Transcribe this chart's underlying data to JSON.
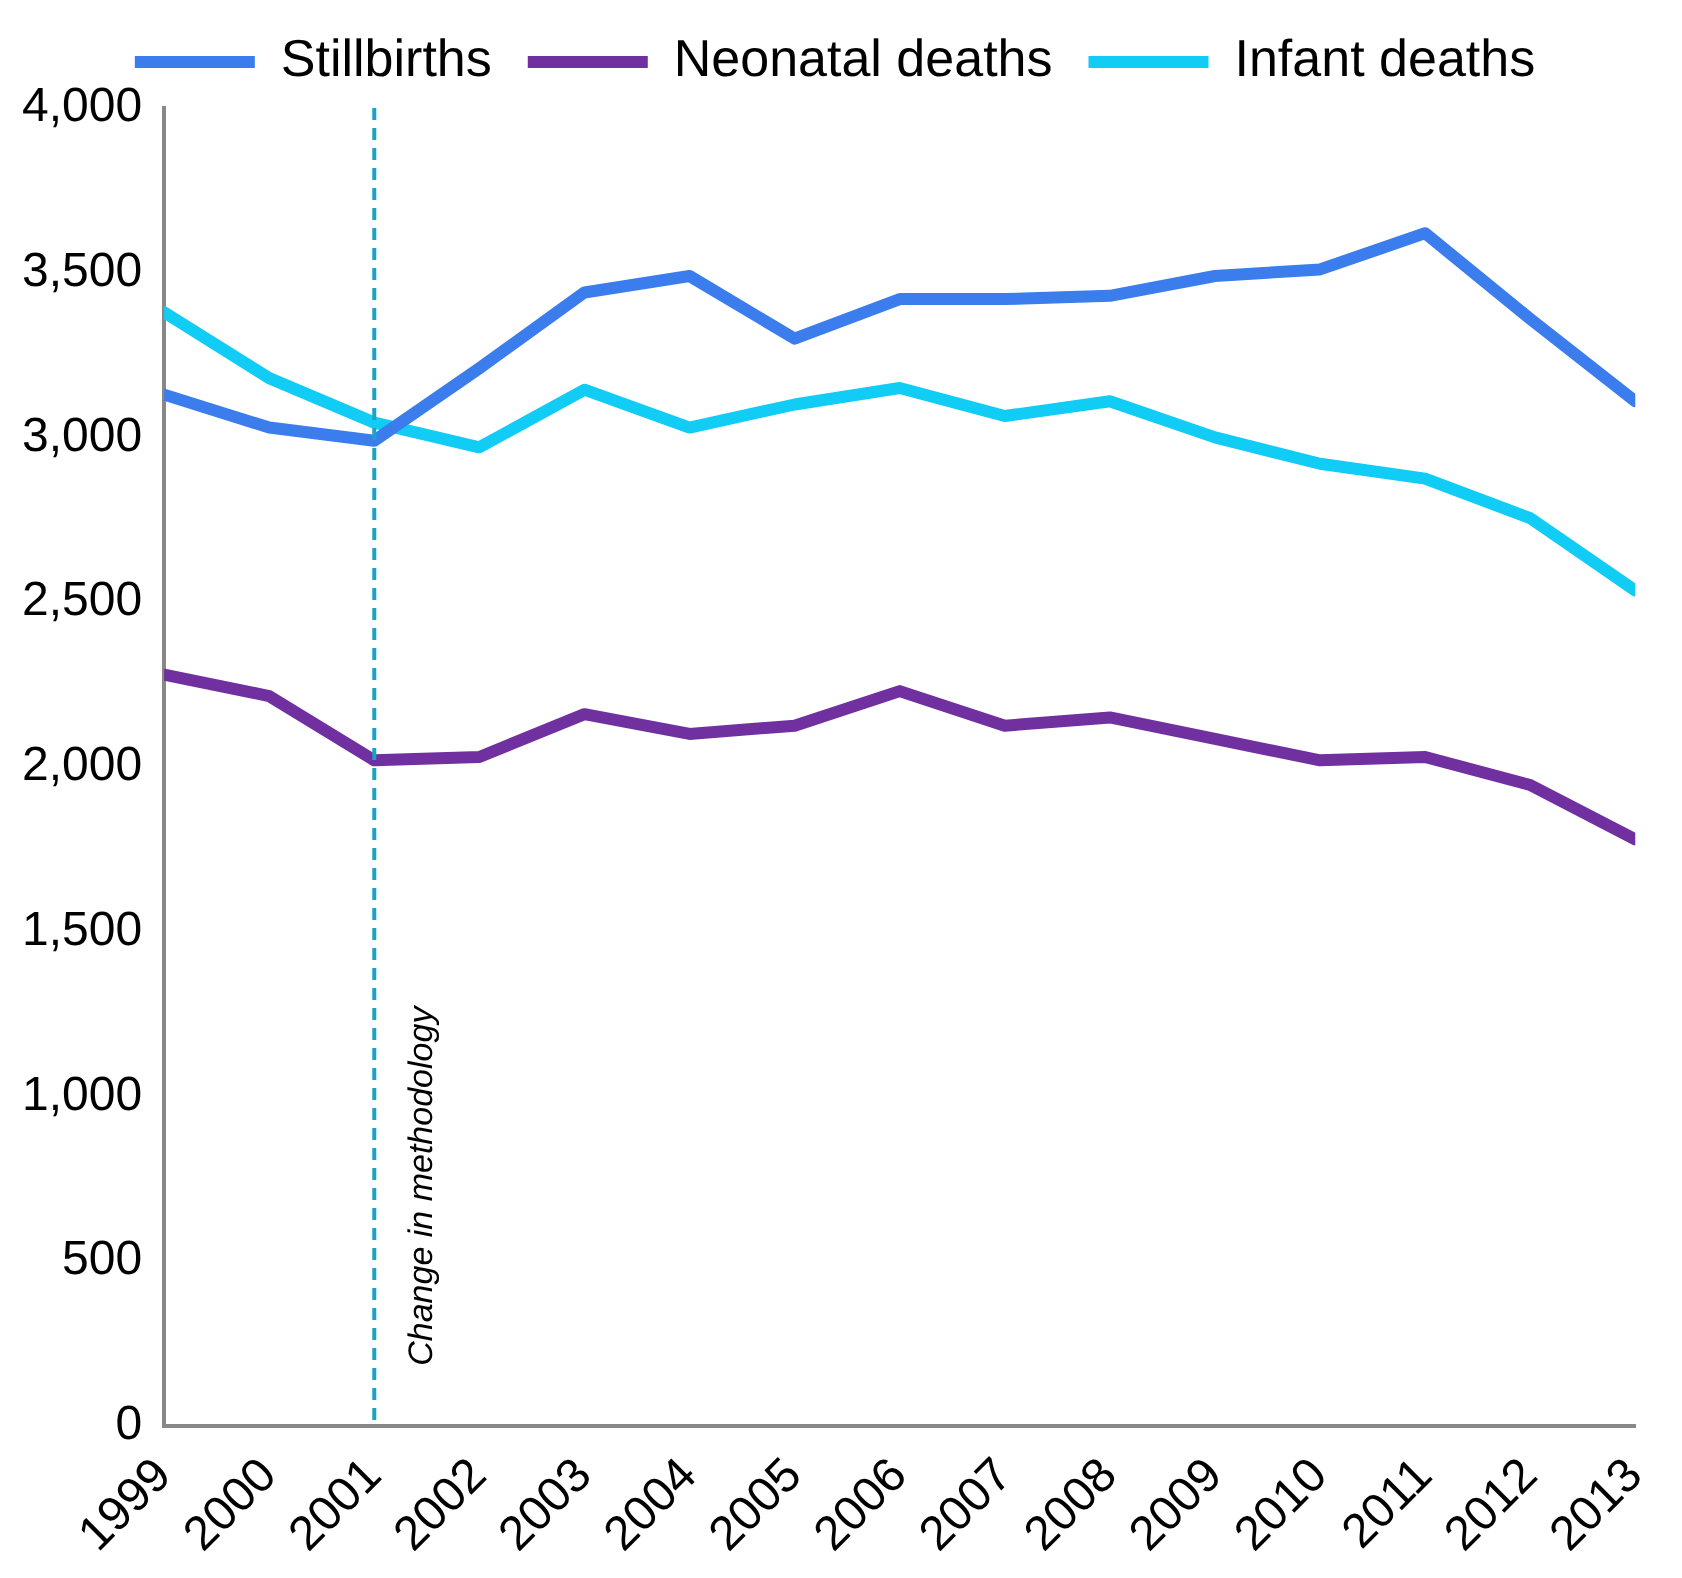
{
  "chart_data": {
    "type": "line",
    "x": [
      1999,
      2000,
      2001,
      2002,
      2003,
      2004,
      2005,
      2006,
      2007,
      2008,
      2009,
      2010,
      2011,
      2012,
      2013
    ],
    "series": [
      {
        "name": "Stillbirths",
        "color": "#3b7ded",
        "values": [
          3130,
          3030,
          2990,
          3210,
          3440,
          3490,
          3300,
          3420,
          3420,
          3430,
          3490,
          3510,
          3620,
          3360,
          3110
        ]
      },
      {
        "name": "Neonatal deaths",
        "color": "#7030a0",
        "values": [
          2280,
          2215,
          2020,
          2030,
          2160,
          2100,
          2125,
          2230,
          2125,
          2150,
          2085,
          2020,
          2030,
          1945,
          1780
        ]
      },
      {
        "name": "Infant deaths",
        "color": "#11ccf5",
        "values": [
          3380,
          3180,
          3045,
          2970,
          3145,
          3030,
          3100,
          3150,
          3065,
          3110,
          3000,
          2920,
          2875,
          2755,
          2535
        ]
      }
    ],
    "xlim": [
      1999,
      2013
    ],
    "xticks": [
      1999,
      2000,
      2001,
      2002,
      2003,
      2004,
      2005,
      2006,
      2007,
      2008,
      2009,
      2010,
      2011,
      2012,
      2013
    ],
    "ylim": [
      0,
      4000
    ],
    "yticks": [
      0,
      500,
      {
        "value": 1000,
        "label": "1,000"
      },
      {
        "value": 1500,
        "label": "1,500"
      },
      {
        "value": 2000,
        "label": "2,000"
      },
      {
        "value": 2500,
        "label": "2,500"
      },
      {
        "value": 3000,
        "label": "3,000"
      },
      {
        "value": 3500,
        "label": "3,500"
      },
      {
        "value": 4000,
        "label": "4,000"
      }
    ],
    "ref_lines": [
      {
        "axis": "x",
        "value": 2001,
        "label": "Change in methodology",
        "color": "#1aa3c4",
        "line_style": "dashed"
      }
    ],
    "grid": false,
    "legend": "top",
    "marker": "none",
    "line_style": "solid"
  }
}
